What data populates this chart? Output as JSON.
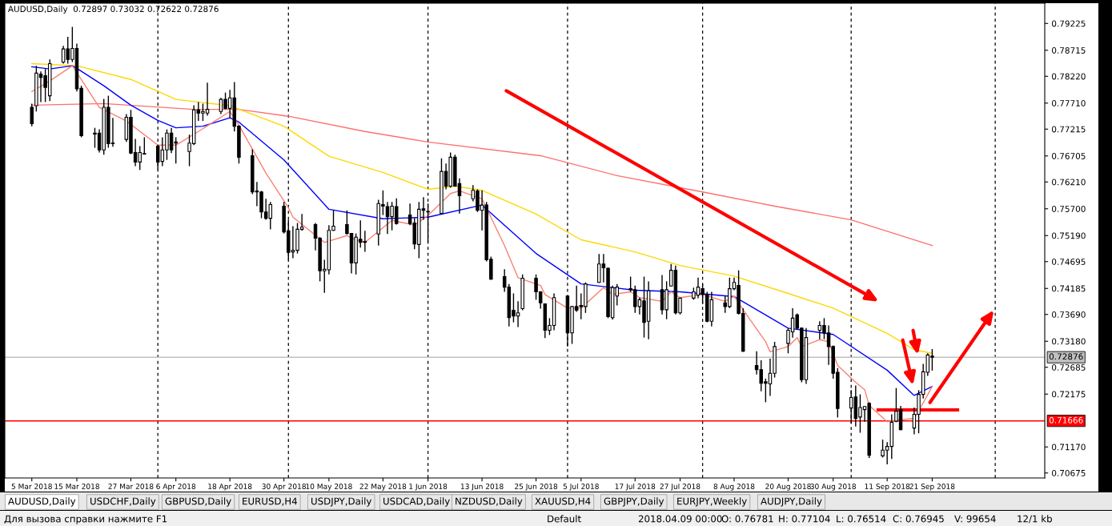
{
  "chart_data": {
    "type": "candlestick",
    "title": "AUDUSD,Daily  0.72897 0.73032 0.72622 0.72876",
    "color": "#000000",
    "x": [
      "2018-03-05",
      "2018-03-06",
      "2018-03-07",
      "2018-03-08",
      "2018-03-09",
      "2018-03-12",
      "2018-03-13",
      "2018-03-14",
      "2018-03-15",
      "2018-03-16",
      "2018-03-19",
      "2018-03-20",
      "2018-03-21",
      "2018-03-22",
      "2018-03-23",
      "2018-03-26",
      "2018-03-27",
      "2018-03-28",
      "2018-03-29",
      "2018-03-30",
      "2018-04-02",
      "2018-04-03",
      "2018-04-04",
      "2018-04-05",
      "2018-04-06",
      "2018-04-09",
      "2018-04-10",
      "2018-04-11",
      "2018-04-12",
      "2018-04-13",
      "2018-04-16",
      "2018-04-17",
      "2018-04-18",
      "2018-04-19",
      "2018-04-20",
      "2018-04-23",
      "2018-04-24",
      "2018-04-25",
      "2018-04-26",
      "2018-04-27",
      "2018-04-30",
      "2018-05-01",
      "2018-05-02",
      "2018-05-03",
      "2018-05-04",
      "2018-05-07",
      "2018-05-08",
      "2018-05-09",
      "2018-05-10",
      "2018-05-11",
      "2018-05-14",
      "2018-05-15",
      "2018-05-16",
      "2018-05-17",
      "2018-05-18",
      "2018-05-21",
      "2018-05-22",
      "2018-05-23",
      "2018-05-24",
      "2018-05-25",
      "2018-05-28",
      "2018-05-29",
      "2018-05-30",
      "2018-05-31",
      "2018-06-01",
      "2018-06-04",
      "2018-06-05",
      "2018-06-06",
      "2018-06-07",
      "2018-06-08",
      "2018-06-11",
      "2018-06-12",
      "2018-06-13",
      "2018-06-14",
      "2018-06-15",
      "2018-06-18",
      "2018-06-19",
      "2018-06-20",
      "2018-06-21",
      "2018-06-22",
      "2018-06-25",
      "2018-06-26",
      "2018-06-27",
      "2018-06-28",
      "2018-06-29",
      "2018-07-02",
      "2018-07-03",
      "2018-07-04",
      "2018-07-05",
      "2018-07-06",
      "2018-07-09",
      "2018-07-10",
      "2018-07-11",
      "2018-07-12",
      "2018-07-13",
      "2018-07-16",
      "2018-07-17",
      "2018-07-18",
      "2018-07-19",
      "2018-07-20",
      "2018-07-23",
      "2018-07-24",
      "2018-07-25",
      "2018-07-26",
      "2018-07-27",
      "2018-07-30",
      "2018-07-31",
      "2018-08-01",
      "2018-08-02",
      "2018-08-03",
      "2018-08-06",
      "2018-08-07",
      "2018-08-08",
      "2018-08-09",
      "2018-08-10",
      "2018-08-13",
      "2018-08-14",
      "2018-08-15",
      "2018-08-16",
      "2018-08-17",
      "2018-08-20",
      "2018-08-21",
      "2018-08-22",
      "2018-08-23",
      "2018-08-24",
      "2018-08-27",
      "2018-08-28",
      "2018-08-29",
      "2018-08-30",
      "2018-08-31",
      "2018-09-03",
      "2018-09-04",
      "2018-09-05",
      "2018-09-06",
      "2018-09-07",
      "2018-09-10",
      "2018-09-11",
      "2018-09-12",
      "2018-09-13",
      "2018-09-14",
      "2018-09-17",
      "2018-09-18",
      "2018-09-19",
      "2018-09-20",
      "2018-09-21"
    ],
    "ohlc": [
      [
        0.7763,
        0.777,
        0.7727,
        0.7732
      ],
      [
        0.7766,
        0.7842,
        0.7755,
        0.7828
      ],
      [
        0.7826,
        0.7831,
        0.7773,
        0.782
      ],
      [
        0.7823,
        0.7836,
        0.7773,
        0.7801
      ],
      [
        0.7785,
        0.7854,
        0.7775,
        0.7846
      ],
      [
        0.7849,
        0.788,
        0.7846,
        0.7874
      ],
      [
        0.7874,
        0.7897,
        0.7846,
        0.7854
      ],
      [
        0.7854,
        0.7916,
        0.7849,
        0.7875
      ],
      [
        0.7875,
        0.7884,
        0.7793,
        0.7798
      ],
      [
        0.7799,
        0.7804,
        0.7706,
        0.7709
      ],
      [
        0.7714,
        0.7724,
        0.7686,
        0.7712
      ],
      [
        0.7714,
        0.7721,
        0.7677,
        0.7682
      ],
      [
        0.7682,
        0.7779,
        0.7673,
        0.7763
      ],
      [
        0.7763,
        0.7785,
        0.7686,
        0.7694
      ],
      [
        0.7695,
        0.7743,
        0.7688,
        0.7694
      ],
      [
        0.7702,
        0.775,
        0.7697,
        0.7744
      ],
      [
        0.7744,
        0.7758,
        0.7674,
        0.7676
      ],
      [
        0.7677,
        0.7703,
        0.7651,
        0.7659
      ],
      [
        0.7659,
        0.7689,
        0.7644,
        0.7677
      ],
      [
        0.7674,
        0.7706,
        0.7673,
        0.7675
      ],
      [
        0.7689,
        0.7692,
        0.7645,
        0.7659
      ],
      [
        0.766,
        0.7706,
        0.7651,
        0.7682
      ],
      [
        0.7682,
        0.7721,
        0.7663,
        0.7714
      ],
      [
        0.7714,
        0.7724,
        0.7676,
        0.7682
      ],
      [
        0.7697,
        0.7706,
        0.7656,
        0.7695
      ],
      [
        0.7679,
        0.7711,
        0.7651,
        0.7695
      ],
      [
        0.7694,
        0.7767,
        0.7691,
        0.7758
      ],
      [
        0.7758,
        0.7773,
        0.7737,
        0.7752
      ],
      [
        0.7752,
        0.777,
        0.7737,
        0.7755
      ],
      [
        0.7752,
        0.781,
        0.7747,
        0.7759
      ],
      [
        0.7755,
        0.7781,
        0.775,
        0.7778
      ],
      [
        0.7778,
        0.7791,
        0.7759,
        0.7761
      ],
      [
        0.7761,
        0.7796,
        0.7743,
        0.7781
      ],
      [
        0.7781,
        0.7811,
        0.7717,
        0.7727
      ],
      [
        0.7727,
        0.7729,
        0.7656,
        0.7668
      ],
      [
        0.7671,
        0.7683,
        0.7598,
        0.7602
      ],
      [
        0.7604,
        0.7621,
        0.7575,
        0.7602
      ],
      [
        0.7602,
        0.7604,
        0.7552,
        0.7564
      ],
      [
        0.7564,
        0.7589,
        0.7549,
        0.7552
      ],
      [
        0.7552,
        0.7583,
        0.7531,
        0.7578
      ],
      [
        0.7575,
        0.7583,
        0.7523,
        0.7526
      ],
      [
        0.7528,
        0.7549,
        0.7473,
        0.7487
      ],
      [
        0.7488,
        0.7537,
        0.7476,
        0.7491
      ],
      [
        0.7491,
        0.7543,
        0.7485,
        0.7531
      ],
      [
        0.7531,
        0.756,
        0.7528,
        0.7535
      ],
      [
        0.754,
        0.7543,
        0.7491,
        0.7514
      ],
      [
        0.7514,
        0.7516,
        0.7432,
        0.7452
      ],
      [
        0.7452,
        0.7473,
        0.741,
        0.7455
      ],
      [
        0.7454,
        0.7539,
        0.7445,
        0.7529
      ],
      [
        0.7529,
        0.7567,
        0.7528,
        0.7537
      ],
      [
        0.754,
        0.7567,
        0.7521,
        0.7523
      ],
      [
        0.7523,
        0.7524,
        0.7447,
        0.7467
      ],
      [
        0.7467,
        0.7523,
        0.7445,
        0.7516
      ],
      [
        0.7512,
        0.7548,
        0.7496,
        0.7506
      ],
      [
        0.7508,
        0.7528,
        0.7488,
        0.7506
      ],
      [
        0.7522,
        0.7587,
        0.75,
        0.758
      ],
      [
        0.7578,
        0.7605,
        0.7558,
        0.7575
      ],
      [
        0.7574,
        0.7583,
        0.7522,
        0.7555
      ],
      [
        0.7555,
        0.7583,
        0.7529,
        0.7575
      ],
      [
        0.7574,
        0.759,
        0.754,
        0.7542
      ],
      [
        0.7558,
        0.758,
        0.7539,
        0.7542
      ],
      [
        0.7543,
        0.7552,
        0.7493,
        0.7503
      ],
      [
        0.7502,
        0.7583,
        0.7476,
        0.7569
      ],
      [
        0.757,
        0.7592,
        0.7549,
        0.7567
      ],
      [
        0.7564,
        0.758,
        0.7506,
        0.7565
      ],
      [
        0.7561,
        0.7666,
        0.756,
        0.7641
      ],
      [
        0.7641,
        0.7656,
        0.7607,
        0.7613
      ],
      [
        0.7613,
        0.7677,
        0.761,
        0.7668
      ],
      [
        0.7668,
        0.7673,
        0.7612,
        0.7613
      ],
      [
        0.7618,
        0.7628,
        0.7561,
        0.7595
      ],
      [
        0.7589,
        0.7615,
        0.7584,
        0.7605
      ],
      [
        0.7604,
        0.7607,
        0.7564,
        0.7567
      ],
      [
        0.7567,
        0.7605,
        0.7529,
        0.7577
      ],
      [
        0.7577,
        0.7583,
        0.747,
        0.7473
      ],
      [
        0.7474,
        0.7479,
        0.7435,
        0.7436
      ],
      [
        0.7441,
        0.7455,
        0.7412,
        0.7421
      ],
      [
        0.7421,
        0.7427,
        0.7346,
        0.7363
      ],
      [
        0.7377,
        0.7409,
        0.7354,
        0.7366
      ],
      [
        0.7366,
        0.7394,
        0.7345,
        0.7372
      ],
      [
        0.738,
        0.7445,
        0.7377,
        0.7438
      ],
      [
        0.7438,
        0.7445,
        0.7397,
        0.7412
      ],
      [
        0.7412,
        0.7413,
        0.738,
        0.7391
      ],
      [
        0.7389,
        0.739,
        0.7324,
        0.7339
      ],
      [
        0.7339,
        0.7362,
        0.733,
        0.7348
      ],
      [
        0.7348,
        0.7409,
        0.7339,
        0.7401
      ],
      [
        0.7404,
        0.7405,
        0.7308,
        0.7334
      ],
      [
        0.7334,
        0.7385,
        0.7313,
        0.7384
      ],
      [
        0.7384,
        0.7424,
        0.7374,
        0.7377
      ],
      [
        0.7386,
        0.7409,
        0.736,
        0.7384
      ],
      [
        0.7384,
        0.743,
        0.7372,
        0.7427
      ],
      [
        0.743,
        0.7484,
        0.7429,
        0.7465
      ],
      [
        0.7465,
        0.7484,
        0.743,
        0.7458
      ],
      [
        0.7457,
        0.7458,
        0.7362,
        0.7365
      ],
      [
        0.7363,
        0.7424,
        0.7359,
        0.742
      ],
      [
        0.7404,
        0.7427,
        0.7386,
        0.7421
      ],
      [
        0.7418,
        0.7441,
        0.7412,
        0.7416
      ],
      [
        0.7416,
        0.7424,
        0.7372,
        0.7384
      ],
      [
        0.7384,
        0.7401,
        0.7369,
        0.7397
      ],
      [
        0.7395,
        0.7441,
        0.7325,
        0.7354
      ],
      [
        0.7356,
        0.7432,
        0.7322,
        0.7414
      ],
      [
        0.7416,
        0.7444,
        0.7369,
        0.7378
      ],
      [
        0.7378,
        0.7432,
        0.736,
        0.7416
      ],
      [
        0.7423,
        0.7465,
        0.7422,
        0.7453
      ],
      [
        0.7453,
        0.7462,
        0.7369,
        0.7372
      ],
      [
        0.7372,
        0.7401,
        0.7369,
        0.74
      ],
      [
        0.74,
        0.742,
        0.7397,
        0.7412
      ],
      [
        0.7406,
        0.7439,
        0.74,
        0.7421
      ],
      [
        0.7418,
        0.7427,
        0.7389,
        0.7407
      ],
      [
        0.7407,
        0.7412,
        0.7354,
        0.7356
      ],
      [
        0.7356,
        0.7412,
        0.7346,
        0.7397
      ],
      [
        0.7391,
        0.7404,
        0.7372,
        0.7384
      ],
      [
        0.7384,
        0.7439,
        0.7381,
        0.7418
      ],
      [
        0.7418,
        0.7439,
        0.7415,
        0.743
      ],
      [
        0.7424,
        0.7453,
        0.7369,
        0.7371
      ],
      [
        0.7371,
        0.7381,
        0.7298,
        0.7299
      ],
      [
        0.7272,
        0.7299,
        0.7255,
        0.7264
      ],
      [
        0.7264,
        0.7282,
        0.7223,
        0.7238
      ],
      [
        0.7241,
        0.7247,
        0.7202,
        0.7238
      ],
      [
        0.7237,
        0.7285,
        0.7214,
        0.7257
      ],
      [
        0.7257,
        0.7317,
        0.7249,
        0.7308
      ],
      [
        0.7314,
        0.7343,
        0.7295,
        0.7339
      ],
      [
        0.7336,
        0.7381,
        0.7325,
        0.7362
      ],
      [
        0.7368,
        0.7371,
        0.734,
        0.7343
      ],
      [
        0.7343,
        0.7344,
        0.724,
        0.7245
      ],
      [
        0.7245,
        0.7343,
        0.7237,
        0.7325
      ],
      [
        0.7339,
        0.7356,
        0.7322,
        0.7348
      ],
      [
        0.7348,
        0.7362,
        0.7322,
        0.7334
      ],
      [
        0.7334,
        0.7348,
        0.7273,
        0.7308
      ],
      [
        0.7308,
        0.731,
        0.7247,
        0.7257
      ],
      [
        0.7259,
        0.7267,
        0.7173,
        0.719
      ],
      [
        0.7191,
        0.7225,
        0.7162,
        0.7211
      ],
      [
        0.7212,
        0.7234,
        0.7156,
        0.7171
      ],
      [
        0.7174,
        0.7217,
        0.7144,
        0.7192
      ],
      [
        0.7188,
        0.7195,
        0.7165,
        0.7194
      ],
      [
        0.72,
        0.7202,
        0.7096,
        0.7101
      ],
      [
        0.71,
        0.7131,
        0.7097,
        0.7111
      ],
      [
        0.7111,
        0.7126,
        0.7084,
        0.7118
      ],
      [
        0.7118,
        0.7179,
        0.7094,
        0.7164
      ],
      [
        0.7166,
        0.7229,
        0.7164,
        0.7185
      ],
      [
        0.7188,
        0.7195,
        0.7149,
        0.715
      ],
      [
        0.7153,
        0.7192,
        0.7141,
        0.7179
      ],
      [
        0.7179,
        0.7225,
        0.7143,
        0.7217
      ],
      [
        0.7217,
        0.7275,
        0.7209,
        0.726
      ],
      [
        0.7259,
        0.7295,
        0.7252,
        0.7292
      ],
      [
        0.72897,
        0.73032,
        0.72622,
        0.72876
      ]
    ],
    "series": [
      {
        "type": "line",
        "color": "#ff6f6f",
        "x": [
          "2018-03-05",
          "2018-03-21",
          "2018-04-10",
          "2018-04-20",
          "2018-05-01",
          "2018-05-18",
          "2018-06-01",
          "2018-06-26",
          "2018-07-13",
          "2018-08-01",
          "2018-08-17",
          "2018-09-03",
          "2018-09-21"
        ],
        "values": [
          0.7767,
          0.777,
          0.7759,
          0.7759,
          0.7746,
          0.7717,
          0.7697,
          0.7671,
          0.7633,
          0.7602,
          0.7575,
          0.7549,
          0.75
        ]
      },
      {
        "type": "line",
        "color": "#ffd700",
        "x": [
          "2018-03-05",
          "2018-03-15",
          "2018-03-27",
          "2018-04-06",
          "2018-04-18",
          "2018-04-30",
          "2018-05-10",
          "2018-05-22",
          "2018-06-01",
          "2018-06-07",
          "2018-06-13",
          "2018-06-25",
          "2018-07-05",
          "2018-07-17",
          "2018-07-27",
          "2018-08-08",
          "2018-08-20",
          "2018-08-30",
          "2018-09-11",
          "2018-09-17",
          "2018-09-21"
        ],
        "values": [
          0.7846,
          0.7842,
          0.7816,
          0.7778,
          0.7766,
          0.7727,
          0.767,
          0.7639,
          0.7607,
          0.7613,
          0.7605,
          0.756,
          0.7511,
          0.7488,
          0.7462,
          0.7442,
          0.7409,
          0.7381,
          0.7333,
          0.7302,
          0.7295
        ]
      },
      {
        "type": "line",
        "color": "#0000ff",
        "x": [
          "2018-03-05",
          "2018-03-09",
          "2018-03-14",
          "2018-03-15",
          "2018-03-21",
          "2018-03-27",
          "2018-04-02",
          "2018-04-06",
          "2018-04-12",
          "2018-04-18",
          "2018-04-20",
          "2018-04-30",
          "2018-05-10",
          "2018-05-22",
          "2018-06-01",
          "2018-06-13",
          "2018-06-25",
          "2018-07-05",
          "2018-07-17",
          "2018-07-27",
          "2018-08-08",
          "2018-08-20",
          "2018-08-30",
          "2018-09-11",
          "2018-09-17",
          "2018-09-21"
        ],
        "values": [
          0.784,
          0.7836,
          0.7842,
          0.7837,
          0.7804,
          0.7767,
          0.7738,
          0.7724,
          0.7727,
          0.7743,
          0.7735,
          0.7663,
          0.7569,
          0.7551,
          0.7554,
          0.7577,
          0.7485,
          0.7427,
          0.7415,
          0.7412,
          0.7403,
          0.7343,
          0.7331,
          0.7263,
          0.7215,
          0.7232
        ]
      },
      {
        "type": "line",
        "color": "#fa8072",
        "x": [
          "2018-03-05",
          "2018-03-09",
          "2018-03-14",
          "2018-03-20",
          "2018-03-26",
          "2018-04-02",
          "2018-04-06",
          "2018-04-11",
          "2018-04-18",
          "2018-04-20",
          "2018-04-26",
          "2018-05-01",
          "2018-05-02",
          "2018-05-09",
          "2018-05-14",
          "2018-05-16",
          "2018-05-18",
          "2018-05-24",
          "2018-05-29",
          "2018-06-01",
          "2018-06-06",
          "2018-06-08",
          "2018-06-13",
          "2018-06-18",
          "2018-06-21",
          "2018-06-26",
          "2018-06-27",
          "2018-07-02",
          "2018-07-05",
          "2018-07-10",
          "2018-07-12",
          "2018-07-16",
          "2018-07-18",
          "2018-07-23",
          "2018-07-25",
          "2018-07-27",
          "2018-08-01",
          "2018-08-06",
          "2018-08-08",
          "2018-08-10",
          "2018-08-15",
          "2018-08-16",
          "2018-08-20",
          "2018-08-22",
          "2018-08-23",
          "2018-08-27",
          "2018-08-29",
          "2018-08-31",
          "2018-09-04",
          "2018-09-06",
          "2018-09-07",
          "2018-09-11",
          "2018-09-13",
          "2018-09-17",
          "2018-09-19",
          "2018-09-21"
        ],
        "values": [
          0.7793,
          0.7813,
          0.7842,
          0.7763,
          0.7737,
          0.7691,
          0.7691,
          0.7717,
          0.7755,
          0.7729,
          0.7638,
          0.7572,
          0.7554,
          0.7506,
          0.7519,
          0.7511,
          0.7506,
          0.7548,
          0.7539,
          0.7557,
          0.7599,
          0.7604,
          0.7589,
          0.75,
          0.7439,
          0.7424,
          0.7407,
          0.7381,
          0.7381,
          0.742,
          0.7407,
          0.7412,
          0.7401,
          0.7394,
          0.7412,
          0.7401,
          0.7407,
          0.7394,
          0.7404,
          0.7378,
          0.7317,
          0.7298,
          0.7308,
          0.7325,
          0.7308,
          0.7321,
          0.7317,
          0.7272,
          0.724,
          0.7226,
          0.7196,
          0.7165,
          0.7168,
          0.7171,
          0.7201,
          0.7232
        ]
      }
    ],
    "xlim": [
      "2018-02-27",
      "2018-10-16"
    ],
    "xticks": [
      {
        "value": "2018-03-05",
        "label": "5 Mar 2018"
      },
      {
        "value": "2018-03-15",
        "label": "15 Mar 2018"
      },
      {
        "value": "2018-03-27",
        "label": "27 Mar 2018"
      },
      {
        "value": "2018-04-06",
        "label": "6 Apr 2018"
      },
      {
        "value": "2018-04-18",
        "label": "18 Apr 2018"
      },
      {
        "value": "2018-04-30",
        "label": "30 Apr 2018"
      },
      {
        "value": "2018-05-10",
        "label": "10 May 2018"
      },
      {
        "value": "2018-05-22",
        "label": "22 May 2018"
      },
      {
        "value": "2018-06-01",
        "label": "1 Jun 2018"
      },
      {
        "value": "2018-06-13",
        "label": "13 Jun 2018"
      },
      {
        "value": "2018-06-25",
        "label": "25 Jun 2018"
      },
      {
        "value": "2018-07-05",
        "label": "5 Jul 2018"
      },
      {
        "value": "2018-07-17",
        "label": "17 Jul 2018"
      },
      {
        "value": "2018-07-27",
        "label": "27 Jul 2018"
      },
      {
        "value": "2018-08-08",
        "label": "8 Aug 2018"
      },
      {
        "value": "2018-08-20",
        "label": "20 Aug 2018"
      },
      {
        "value": "2018-08-30",
        "label": "30 Aug 2018"
      },
      {
        "value": "2018-09-11",
        "label": "11 Sep 2018"
      },
      {
        "value": "2018-09-21",
        "label": "21 Sep 2018"
      }
    ],
    "ylim": [
      0.7058,
      0.7961
    ],
    "yticks": [
      0.79225,
      0.78715,
      {
        "value": 0.7822,
        "label": "0.78220"
      },
      {
        "value": 0.7771,
        "label": "0.77710"
      },
      0.77215,
      0.76705,
      {
        "value": 0.7621,
        "label": "0.76210"
      },
      {
        "value": 0.757,
        "label": "0.75700"
      },
      {
        "value": 0.7519,
        "label": "0.75190"
      },
      0.74695,
      0.74185,
      {
        "value": 0.7369,
        "label": "0.73690"
      },
      {
        "value": 0.7318,
        "label": "0.73180"
      },
      0.72685,
      0.72175,
      {
        "value": 0.7117,
        "label": "0.71170"
      },
      0.70675
    ],
    "ref_lines": [
      {
        "axis": "x",
        "value": "2018-04-02",
        "color": "#000000",
        "line_style": "dashed"
      },
      {
        "axis": "x",
        "value": "2018-05-01",
        "color": "#000000",
        "line_style": "dashed"
      },
      {
        "axis": "x",
        "value": "2018-06-01",
        "color": "#000000",
        "line_style": "dashed"
      },
      {
        "axis": "x",
        "value": "2018-07-02",
        "color": "#000000",
        "line_style": "dashed"
      },
      {
        "axis": "x",
        "value": "2018-08-01",
        "color": "#000000",
        "line_style": "dashed"
      },
      {
        "axis": "x",
        "value": "2018-09-03",
        "color": "#000000",
        "line_style": "dashed"
      },
      {
        "axis": "x",
        "value": "2018-10-05",
        "color": "#000000",
        "line_style": "dashed"
      },
      {
        "axis": "y",
        "value": 0.72876,
        "label": "0.72876",
        "color": "#c0c0c0",
        "line_style": "solid"
      },
      {
        "axis": "y",
        "value": 0.71666,
        "label": "0.71666",
        "color": "#ff0000",
        "line_style": "solid"
      }
    ],
    "annotations": [
      "AUDUSD,Daily",
      "USDCHF,Daily",
      "GBPUSD,Daily",
      "EURUSD,H4",
      "USDJPY,Daily",
      "USDCAD,Daily",
      "NZDUSD,Daily",
      "XAUUSD,H4",
      "GBPJPY,Daily",
      "EURJPY,Weekly",
      "AUDJPY,Daily",
      "Для вызова справки нажмите F1",
      "Default",
      "2018.04.09 00:00",
      "O: 0.76781",
      "H: 0.77104",
      "L: 0.76514",
      "C: 0.76945",
      "V: 99654",
      "12/1 kb"
    ]
  }
}
